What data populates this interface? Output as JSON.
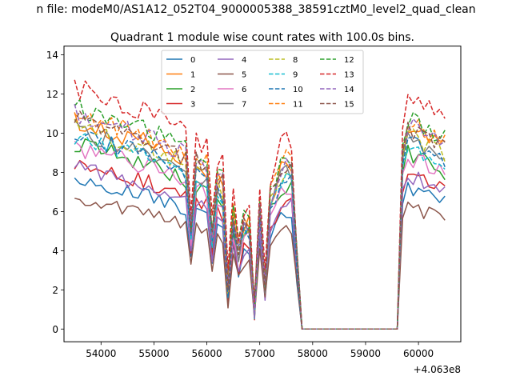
{
  "suptitle": "n file: modeM0/AS1A12_052T04_9000005388_38591cztM0_level2_quad_clean",
  "chart_data": {
    "type": "line",
    "title": "Quadrant 1 module wise count rates with 100.0s bins.",
    "xlabel": "",
    "ylabel": "",
    "x_offset_label": "+4.063e8",
    "xlim": [
      53300,
      60800
    ],
    "ylim": [
      -0.65,
      14.45
    ],
    "xticks": [
      54000,
      55000,
      56000,
      57000,
      58000,
      59000,
      60000
    ],
    "yticks": [
      0,
      2,
      4,
      6,
      8,
      10,
      12,
      14
    ],
    "legend_position": "upper center",
    "legend_ncol": 4,
    "gap_start": 57800,
    "gap_end": 59600,
    "series": [
      {
        "name": "0",
        "color": "#1f77b4",
        "dash": "solid",
        "base": 7.6,
        "amp": 0.75,
        "seed": 1
      },
      {
        "name": "1",
        "color": "#ff7f0e",
        "dash": "solid",
        "base": 10.7,
        "amp": 1.05,
        "seed": 2
      },
      {
        "name": "2",
        "color": "#2ca02c",
        "dash": "solid",
        "base": 9.5,
        "amp": 0.95,
        "seed": 3
      },
      {
        "name": "3",
        "color": "#d62728",
        "dash": "solid",
        "base": 8.4,
        "amp": 0.85,
        "seed": 4
      },
      {
        "name": "4",
        "color": "#9467bd",
        "dash": "solid",
        "base": 8.3,
        "amp": 0.85,
        "seed": 5
      },
      {
        "name": "5",
        "color": "#8c564b",
        "dash": "solid",
        "base": 6.6,
        "amp": 0.7,
        "seed": 6
      },
      {
        "name": "6",
        "color": "#e377c2",
        "dash": "solid",
        "base": 9.3,
        "amp": 0.95,
        "seed": 7
      },
      {
        "name": "7",
        "color": "#7f7f7f",
        "dash": "solid",
        "base": 10.2,
        "amp": 1.0,
        "seed": 8
      },
      {
        "name": "8",
        "color": "#bcbd22",
        "dash": "dashed",
        "base": 10.4,
        "amp": 1.0,
        "seed": 9
      },
      {
        "name": "9",
        "color": "#17becf",
        "dash": "dashed",
        "base": 9.9,
        "amp": 0.95,
        "seed": 10
      },
      {
        "name": "10",
        "color": "#1f77b4",
        "dash": "dashed",
        "base": 10.0,
        "amp": 1.0,
        "seed": 11
      },
      {
        "name": "11",
        "color": "#ff7f0e",
        "dash": "dashed",
        "base": 11.1,
        "amp": 1.05,
        "seed": 12
      },
      {
        "name": "12",
        "color": "#2ca02c",
        "dash": "dashed",
        "base": 11.3,
        "amp": 1.1,
        "seed": 13
      },
      {
        "name": "13",
        "color": "#d62728",
        "dash": "dashed",
        "base": 12.4,
        "amp": 1.2,
        "seed": 14
      },
      {
        "name": "14",
        "color": "#9467bd",
        "dash": "dashed",
        "base": 11.0,
        "amp": 1.05,
        "seed": 15
      },
      {
        "name": "15",
        "color": "#8c564b",
        "dash": "dashed",
        "base": 10.9,
        "amp": 1.05,
        "seed": 16
      }
    ]
  }
}
